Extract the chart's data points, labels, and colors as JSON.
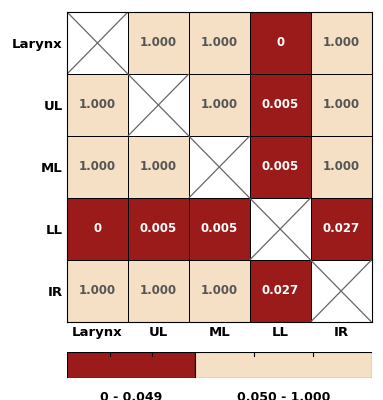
{
  "labels": [
    "Larynx",
    "UL",
    "ML",
    "LL",
    "IR"
  ],
  "matrix": [
    [
      null,
      1.0,
      1.0,
      0,
      1.0
    ],
    [
      1.0,
      null,
      1.0,
      0.005,
      1.0
    ],
    [
      1.0,
      1.0,
      null,
      0.005,
      1.0
    ],
    [
      0,
      0.005,
      0.005,
      null,
      0.027
    ],
    [
      1.0,
      1.0,
      1.0,
      0.027,
      null
    ]
  ],
  "color_low": "#9B1B1B",
  "color_high": "#F5DFC5",
  "threshold": 0.05,
  "text_color_low": "#FFFFFF",
  "text_color_high": "#555555",
  "background_color": "#FFFFFF",
  "legend_label_low": "0 - 0.049",
  "legend_label_high": "0.050 - 1.000",
  "cell_text_fontsize": 8.5,
  "axis_label_fontsize": 9.5,
  "legend_fontsize": 9,
  "legend_split": 0.42
}
